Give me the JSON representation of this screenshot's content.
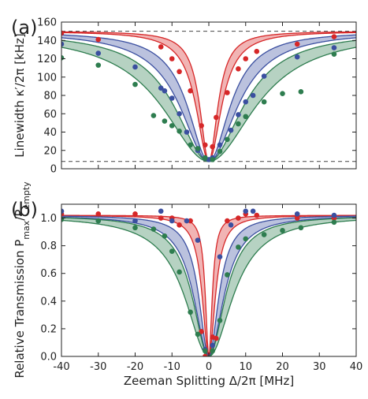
{
  "chart_data": [
    {
      "type": "scatter",
      "panel_label": "(a)",
      "ylabel": "Linewidth κ′/2π [kHz]",
      "xlabel": "",
      "xlim": [
        -40,
        40
      ],
      "ylim": [
        0,
        160
      ],
      "xticks": [
        -40,
        -30,
        -20,
        -10,
        0,
        10,
        20,
        30,
        40
      ],
      "yticks": [
        0,
        20,
        40,
        60,
        80,
        100,
        120,
        140,
        160
      ],
      "xtick_labels_visible": false,
      "grid": false,
      "legend": "none",
      "reference_lines": [
        {
          "y": 150,
          "style": "dashed"
        },
        {
          "y": 8,
          "style": "dashed"
        }
      ],
      "series": [
        {
          "color": "#d62728",
          "fit_width": 3.5,
          "fit_band": 0.6,
          "x": [
            -40,
            -30,
            -13,
            -10,
            -8,
            -5,
            -2,
            -1,
            1,
            2,
            5,
            8,
            10,
            13,
            24,
            34
          ],
          "y": [
            148,
            141,
            133,
            120,
            106,
            85,
            47,
            26,
            24,
            56,
            83,
            109,
            120,
            128,
            136,
            144
          ]
        },
        {
          "color": "#3b4fa0",
          "fit_width": 8,
          "fit_band": 1.2,
          "x": [
            -40,
            -30,
            -20,
            -13,
            -12,
            -10,
            -8,
            -6,
            -3,
            -1,
            0,
            1,
            3,
            6,
            8,
            10,
            12,
            15,
            24,
            34
          ],
          "y": [
            136,
            126,
            111,
            88,
            85,
            77,
            60,
            40,
            20,
            12,
            10,
            12,
            26,
            42,
            59,
            73,
            80,
            101,
            122,
            132
          ]
        },
        {
          "color": "#2e7d4f",
          "fit_width": 13,
          "fit_band": 2,
          "x": [
            -40,
            -30,
            -20,
            -15,
            -12,
            -10,
            -8,
            -5,
            -3,
            -1,
            1,
            3,
            5,
            8,
            10,
            15,
            20,
            25,
            34
          ],
          "y": [
            121,
            113,
            92,
            58,
            52,
            47,
            41,
            26,
            22,
            12,
            10,
            19,
            32,
            49,
            57,
            73,
            82,
            84,
            125
          ]
        }
      ]
    },
    {
      "type": "scatter",
      "panel_label": "(b)",
      "ylabel": "Relative Transmission P_max/P_empty",
      "xlabel": "Zeeman Splitting Δ/2π [MHz]",
      "xlim": [
        -40,
        40
      ],
      "ylim": [
        0,
        1.1
      ],
      "xticks": [
        -40,
        -30,
        -20,
        -10,
        0,
        10,
        20,
        30,
        40
      ],
      "yticks": [
        0.0,
        0.2,
        0.4,
        0.6,
        0.8,
        1.0
      ],
      "grid": false,
      "legend": "none",
      "series": [
        {
          "color": "#d62728",
          "fit_width": 1.6,
          "fit_band": 0.5,
          "x": [
            -40,
            -30,
            -20,
            -13,
            -10,
            -8,
            -5,
            -2,
            -1,
            1,
            2,
            5,
            8,
            10,
            13,
            24,
            34
          ],
          "y": [
            1.03,
            1.03,
            1.03,
            1.0,
            1.0,
            0.95,
            0.98,
            0.18,
            0.0,
            0.14,
            0.13,
            0.98,
            1.0,
            1.03,
            1.02,
            1.0,
            1.0
          ]
        },
        {
          "color": "#3b4fa0",
          "fit_width": 4,
          "fit_band": 0.8,
          "x": [
            -40,
            -30,
            -20,
            -13,
            -10,
            -6,
            -3,
            -1,
            1,
            3,
            6,
            10,
            12,
            24,
            34
          ],
          "y": [
            1.05,
            0.98,
            0.98,
            1.05,
            0.98,
            0.98,
            0.84,
            0.05,
            0.08,
            0.72,
            0.95,
            1.05,
            1.05,
            1.03,
            1.02
          ]
        },
        {
          "color": "#2e7d4f",
          "fit_width": 6.5,
          "fit_band": 1.2,
          "x": [
            -40,
            -30,
            -20,
            -15,
            -12,
            -10,
            -8,
            -5,
            -3,
            -1,
            1,
            3,
            5,
            8,
            10,
            15,
            20,
            25,
            34
          ],
          "y": [
            0.99,
            0.98,
            0.93,
            0.92,
            0.87,
            0.76,
            0.61,
            0.32,
            0.16,
            0.04,
            0.04,
            0.26,
            0.59,
            0.79,
            0.85,
            0.88,
            0.91,
            0.93,
            0.97
          ]
        }
      ]
    }
  ]
}
